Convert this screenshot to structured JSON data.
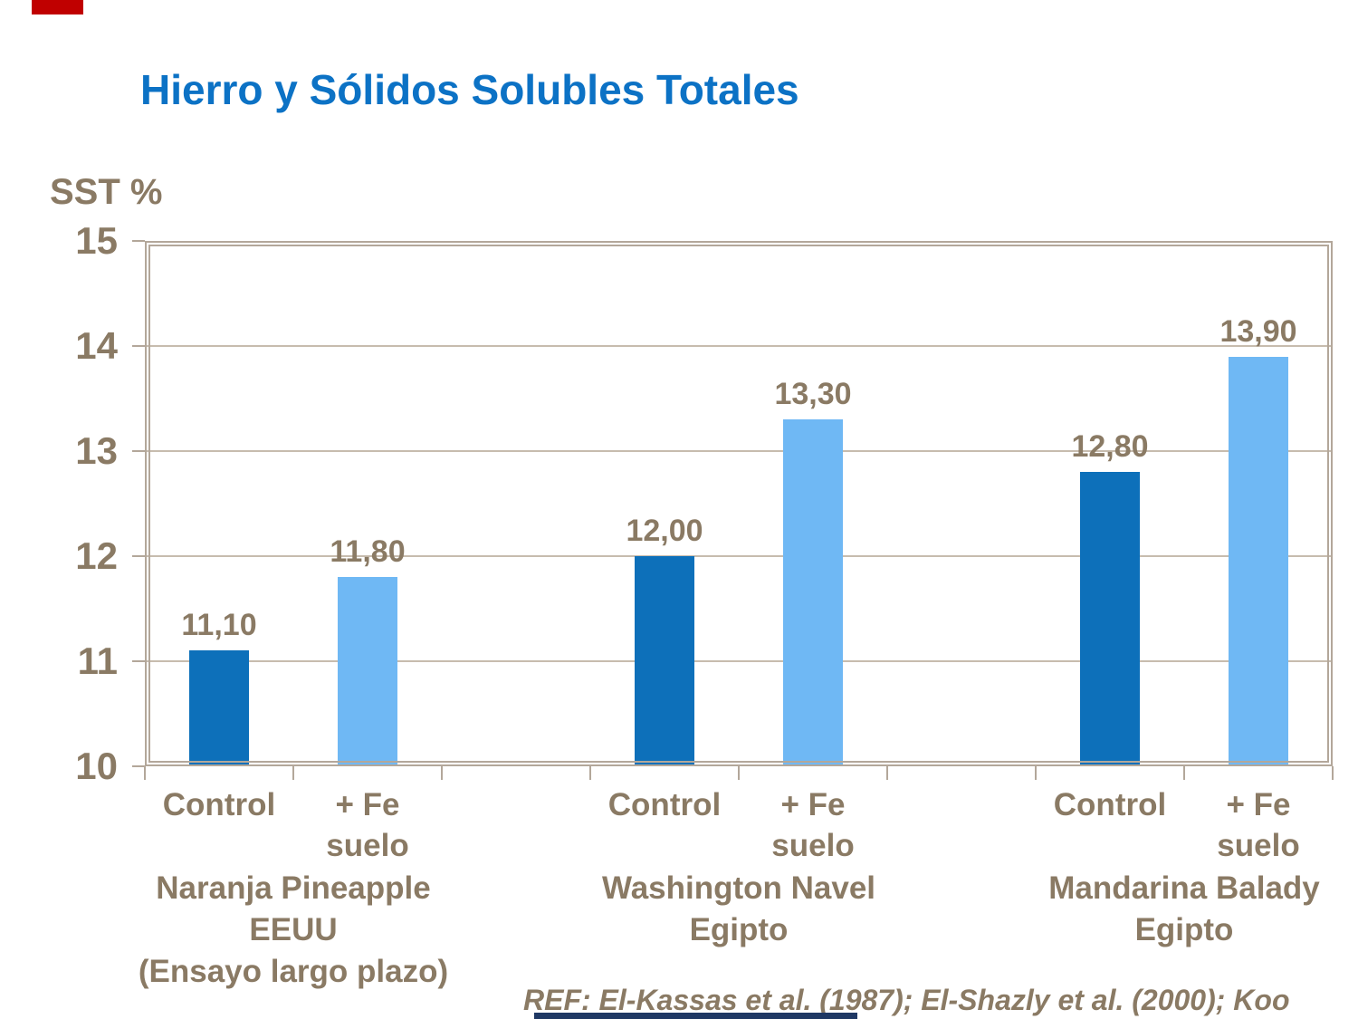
{
  "title": "Hierro y Sólidos Solubles Totales",
  "footer": {
    "reference": "REF: El-Kassas et al. (1987); El-Shazly et al. (2000); Koo"
  },
  "colors": {
    "title_blue": "#0c72c5",
    "text_brown": "#8a7a64",
    "frame_tan": "#b3a79a",
    "grid_tan": "#c7bcae",
    "bar_dark_blue": "#0d70ba",
    "bar_light_blue": "#6fb8f4",
    "red_accent": "#c00000",
    "navy_fragment": "#1f3864"
  },
  "chart_data": {
    "type": "bar",
    "title": "Hierro y Sólidos Solubles Totales",
    "xlabel": "",
    "ylabel": "SST %",
    "ylim": [
      10,
      15
    ],
    "yticks": [
      15,
      14,
      13,
      12,
      11,
      10
    ],
    "grid": true,
    "legend_position": "none",
    "decimal_style": "comma",
    "series_names": [
      "Control",
      "+ Fe suelo"
    ],
    "groups": [
      {
        "name_lines": [
          "Naranja Pineapple",
          "EEUU",
          "(Ensayo largo plazo)"
        ],
        "bars": [
          {
            "series": "Control",
            "label_lines": [
              "Control"
            ],
            "value": 11.1,
            "display": "11,10",
            "color_key": "bar_dark_blue"
          },
          {
            "series": "+ Fe suelo",
            "label_lines": [
              "+ Fe",
              "suelo"
            ],
            "value": 11.8,
            "display": "11,80",
            "color_key": "bar_light_blue"
          }
        ]
      },
      {
        "name_lines": [
          "Washington Navel",
          "Egipto"
        ],
        "bars": [
          {
            "series": "Control",
            "label_lines": [
              "Control"
            ],
            "value": 12.0,
            "display": "12,00",
            "color_key": "bar_dark_blue"
          },
          {
            "series": "+ Fe suelo",
            "label_lines": [
              "+ Fe",
              "suelo"
            ],
            "value": 13.3,
            "display": "13,30",
            "color_key": "bar_light_blue"
          }
        ]
      },
      {
        "name_lines": [
          "Mandarina Balady",
          "Egipto"
        ],
        "bars": [
          {
            "series": "Control",
            "label_lines": [
              "Control"
            ],
            "value": 12.8,
            "display": "12,80",
            "color_key": "bar_dark_blue"
          },
          {
            "series": "+ Fe suelo",
            "label_lines": [
              "+ Fe",
              "suelo"
            ],
            "value": 13.9,
            "display": "13,90",
            "color_key": "bar_light_blue"
          }
        ]
      }
    ]
  }
}
